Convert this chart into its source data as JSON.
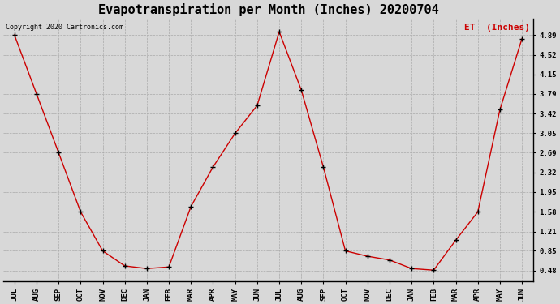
{
  "title": "Evapotranspiration per Month (Inches) 20200704",
  "copyright": "Copyright 2020 Cartronics.com",
  "legend_label": "ET  (Inches)",
  "months": [
    "JUL",
    "AUG",
    "SEP",
    "OCT",
    "NOV",
    "DEC",
    "JAN",
    "FEB",
    "MAR",
    "APR",
    "MAY",
    "JUN",
    "JUL",
    "AUG",
    "SEP",
    "OCT",
    "NOV",
    "DEC",
    "JAN",
    "FEB",
    "MAR",
    "APR",
    "MAY",
    "JUN"
  ],
  "values": [
    4.89,
    3.79,
    2.69,
    1.58,
    0.85,
    0.57,
    0.52,
    0.55,
    1.68,
    2.42,
    3.05,
    3.57,
    4.95,
    3.86,
    2.42,
    0.85,
    0.75,
    0.68,
    0.52,
    0.49,
    1.05,
    1.58,
    3.49,
    4.82
  ],
  "yticks": [
    0.48,
    0.85,
    1.21,
    1.58,
    1.95,
    2.32,
    2.69,
    3.05,
    3.42,
    3.79,
    4.15,
    4.52,
    4.89
  ],
  "ylim": [
    0.28,
    5.2
  ],
  "line_color": "#cc0000",
  "marker_color": "#000000",
  "grid_color": "#aaaaaa",
  "background_color": "#d8d8d8",
  "title_fontsize": 11,
  "axis_fontsize": 6.5,
  "copyright_fontsize": 6,
  "legend_fontsize": 8
}
